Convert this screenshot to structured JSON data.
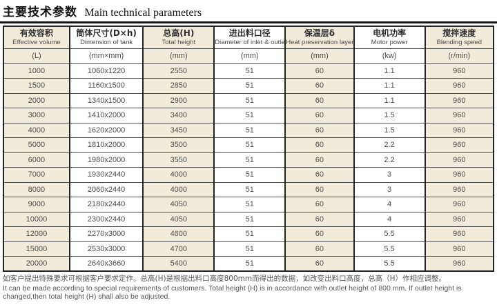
{
  "title": {
    "zh": "主要技术参数",
    "en": "Main technical parameters"
  },
  "table": {
    "columns": [
      {
        "zh": "有效容积",
        "en": "Effective volume",
        "unit": "(L)"
      },
      {
        "zh": "筒体尺寸(D×h)",
        "en": "Dimension of tank",
        "unit": "(mm×mm)"
      },
      {
        "zh": "总高(H)",
        "en": "Total height",
        "unit": "(mm)"
      },
      {
        "zh": "进出料口径",
        "en": "Diameter of inlet & outlet",
        "unit": "(mm)"
      },
      {
        "zh": "保温层δ",
        "en": "Heat preservation layer",
        "unit": "(mm)"
      },
      {
        "zh": "电机功率",
        "en": "Motor power",
        "unit": "(kw)"
      },
      {
        "zh": "搅拌速度",
        "en": "Blending speed",
        "unit": "(r/min)"
      }
    ],
    "rows": [
      [
        "1000",
        "1060x1220",
        "2550",
        "51",
        "60",
        "1.1",
        "960"
      ],
      [
        "1500",
        "1160x1500",
        "2850",
        "51",
        "60",
        "1.1",
        "960"
      ],
      [
        "2000",
        "1340x1500",
        "2900",
        "51",
        "60",
        "1.1",
        "960"
      ],
      [
        "3000",
        "1410x2000",
        "3400",
        "51",
        "60",
        "1.5",
        "960"
      ],
      [
        "4000",
        "1620x2000",
        "3450",
        "51",
        "60",
        "1.5",
        "960"
      ],
      [
        "5000",
        "1810x2000",
        "3500",
        "51",
        "60",
        "2.2",
        "960"
      ],
      [
        "6000",
        "1980x2000",
        "3550",
        "51",
        "60",
        "2.2",
        "960"
      ],
      [
        "7000",
        "1930x2440",
        "4000",
        "51",
        "60",
        "3",
        "960"
      ],
      [
        "8000",
        "2060x2440",
        "4000",
        "51",
        "60",
        "3",
        "960"
      ],
      [
        "9000",
        "2180x2440",
        "4050",
        "51",
        "60",
        "4",
        "960"
      ],
      [
        "10000",
        "2300x2440",
        "4050",
        "51",
        "60",
        "4",
        "960"
      ],
      [
        "12000",
        "2270x3000",
        "4600",
        "51",
        "60",
        "5.5",
        "960"
      ],
      [
        "15000",
        "2530x3000",
        "4700",
        "51",
        "60",
        "5.5",
        "960"
      ],
      [
        "20000",
        "2640x3660",
        "5400",
        "51",
        "60",
        "5.5",
        "960"
      ]
    ]
  },
  "footnote": {
    "zh": "如客户提出特殊要求可根据客户要求定作。总高(H)是根据出料口高度800mm而得出的数据，如改变出料口高度，总高（H）作相应调整。",
    "en": "It can be made according to special requirements of customers. Total height (H) is in accordance with outlet height of 800 mm. If outlet height is changed,then total height (H) shall also be adjusted."
  },
  "colors": {
    "band": "#f1ebd9",
    "border": "#222222"
  }
}
